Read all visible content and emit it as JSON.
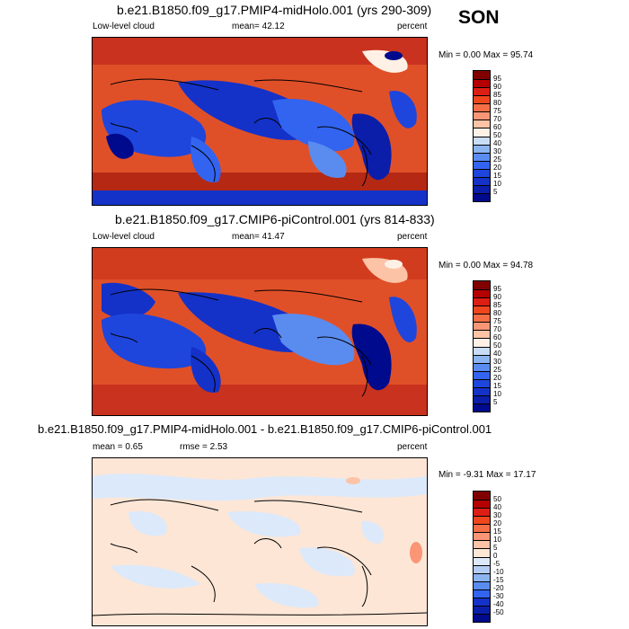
{
  "season": "SON",
  "panels": [
    {
      "title": "b.e21.B1850.f09_g17.PMIP4-midHolo.001 (yrs 290-309)",
      "left_label": "Low-level cloud",
      "mean_label": "mean=  42.12",
      "units": "percent",
      "minmax": "Min =   0.00 Max =  95.74",
      "levels": [
        "95",
        "90",
        "85",
        "80",
        "75",
        "70",
        "60",
        "50",
        "40",
        "30",
        "25",
        "20",
        "15",
        "10",
        "5"
      ],
      "colors": [
        "#800000",
        "#b40000",
        "#dc1e14",
        "#f0461e",
        "#f56e46",
        "#fa9676",
        "#fcc3a6",
        "#fff0e6",
        "#c8dcf5",
        "#8cb4f0",
        "#5a8cf0",
        "#3264f0",
        "#1e46dc",
        "#1432c8",
        "#0a1eaa",
        "#000a8c"
      ]
    },
    {
      "title": "b.e21.B1850.f09_g17.CMIP6-piControl.001 (yrs 814-833)",
      "left_label": "Low-level cloud",
      "mean_label": "mean=  41.47",
      "units": "percent",
      "minmax": "Min =   0.00 Max =  94.78",
      "levels": [
        "95",
        "90",
        "85",
        "80",
        "75",
        "70",
        "60",
        "50",
        "40",
        "30",
        "25",
        "20",
        "15",
        "10",
        "5"
      ],
      "colors": [
        "#800000",
        "#b40000",
        "#dc1e14",
        "#f0461e",
        "#f56e46",
        "#fa9676",
        "#fcc3a6",
        "#fff0e6",
        "#c8dcf5",
        "#8cb4f0",
        "#5a8cf0",
        "#3264f0",
        "#1e46dc",
        "#1432c8",
        "#0a1eaa",
        "#000a8c"
      ]
    },
    {
      "title": "b.e21.B1850.f09_g17.PMIP4-midHolo.001 - b.e21.B1850.f09_g17.CMIP6-piControl.001",
      "left_label": "mean =   0.65",
      "mean_label": "rmse =   2.53",
      "units": "percent",
      "minmax": "Min =  -9.31 Max =  17.17",
      "levels": [
        "50",
        "40",
        "30",
        "20",
        "15",
        "10",
        "5",
        "0",
        "-5",
        "-10",
        "-15",
        "-20",
        "-30",
        "-40",
        "-50"
      ],
      "colors": [
        "#800000",
        "#b40000",
        "#dc1e14",
        "#f0461e",
        "#f56e46",
        "#fa9676",
        "#fcc3a6",
        "#fde6d6",
        "#dce9fa",
        "#b4cdf5",
        "#8cb4f0",
        "#5a8cf0",
        "#3264f0",
        "#1432c8",
        "#0a1eaa",
        "#000a8c"
      ]
    }
  ]
}
